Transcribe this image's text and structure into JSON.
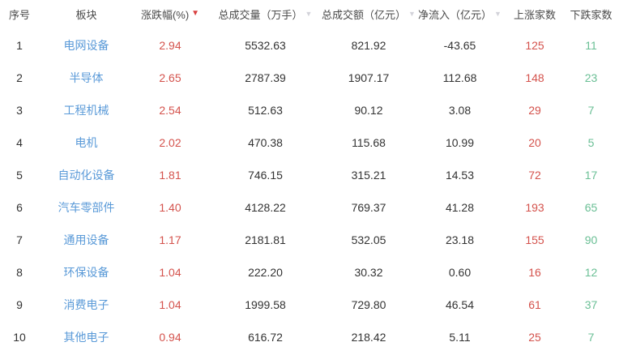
{
  "table": {
    "columns": [
      {
        "label": "序号",
        "sortable": false,
        "sort_state": "none"
      },
      {
        "label": "板块",
        "sortable": false,
        "sort_state": "none"
      },
      {
        "label": "涨跌幅(%)",
        "sortable": true,
        "sort_state": "desc-active"
      },
      {
        "label": "总成交量（万手）",
        "sortable": true,
        "sort_state": "inactive"
      },
      {
        "label": "总成交额（亿元）",
        "sortable": true,
        "sort_state": "inactive"
      },
      {
        "label": "净流入（亿元）",
        "sortable": true,
        "sort_state": "inactive"
      },
      {
        "label": "上涨家数",
        "sortable": false,
        "sort_state": "none"
      },
      {
        "label": "下跌家数",
        "sortable": false,
        "sort_state": "none"
      }
    ],
    "rows": [
      {
        "index": "1",
        "sector": "电网设备",
        "change": "2.94",
        "volume": "5532.63",
        "turnover": "821.92",
        "inflow": "-43.65",
        "up": "125",
        "down": "11"
      },
      {
        "index": "2",
        "sector": "半导体",
        "change": "2.65",
        "volume": "2787.39",
        "turnover": "1907.17",
        "inflow": "112.68",
        "up": "148",
        "down": "23"
      },
      {
        "index": "3",
        "sector": "工程机械",
        "change": "2.54",
        "volume": "512.63",
        "turnover": "90.12",
        "inflow": "3.08",
        "up": "29",
        "down": "7"
      },
      {
        "index": "4",
        "sector": "电机",
        "change": "2.02",
        "volume": "470.38",
        "turnover": "115.68",
        "inflow": "10.99",
        "up": "20",
        "down": "5"
      },
      {
        "index": "5",
        "sector": "自动化设备",
        "change": "1.81",
        "volume": "746.15",
        "turnover": "315.21",
        "inflow": "14.53",
        "up": "72",
        "down": "17"
      },
      {
        "index": "6",
        "sector": "汽车零部件",
        "change": "1.40",
        "volume": "4128.22",
        "turnover": "769.37",
        "inflow": "41.28",
        "up": "193",
        "down": "65"
      },
      {
        "index": "7",
        "sector": "通用设备",
        "change": "1.17",
        "volume": "2181.81",
        "turnover": "532.05",
        "inflow": "23.18",
        "up": "155",
        "down": "90"
      },
      {
        "index": "8",
        "sector": "环保设备",
        "change": "1.04",
        "volume": "222.20",
        "turnover": "30.32",
        "inflow": "0.60",
        "up": "16",
        "down": "12"
      },
      {
        "index": "9",
        "sector": "消费电子",
        "change": "1.04",
        "volume": "1999.58",
        "turnover": "729.80",
        "inflow": "46.54",
        "up": "61",
        "down": "37"
      },
      {
        "index": "10",
        "sector": "其他电子",
        "change": "0.94",
        "volume": "616.72",
        "turnover": "218.42",
        "inflow": "5.11",
        "up": "25",
        "down": "7"
      }
    ]
  },
  "icons": {
    "sort_desc_active": "▼",
    "sort_inactive": "▼"
  },
  "colors": {
    "sector_link": "#5a9ad8",
    "up_red": "#d4524c",
    "down_green": "#6abf95",
    "sort_active": "#d84040",
    "sort_inactive": "#d3d3da",
    "header_text": "#4a4a4a",
    "value_text": "#333333",
    "bg": "#ffffff"
  }
}
